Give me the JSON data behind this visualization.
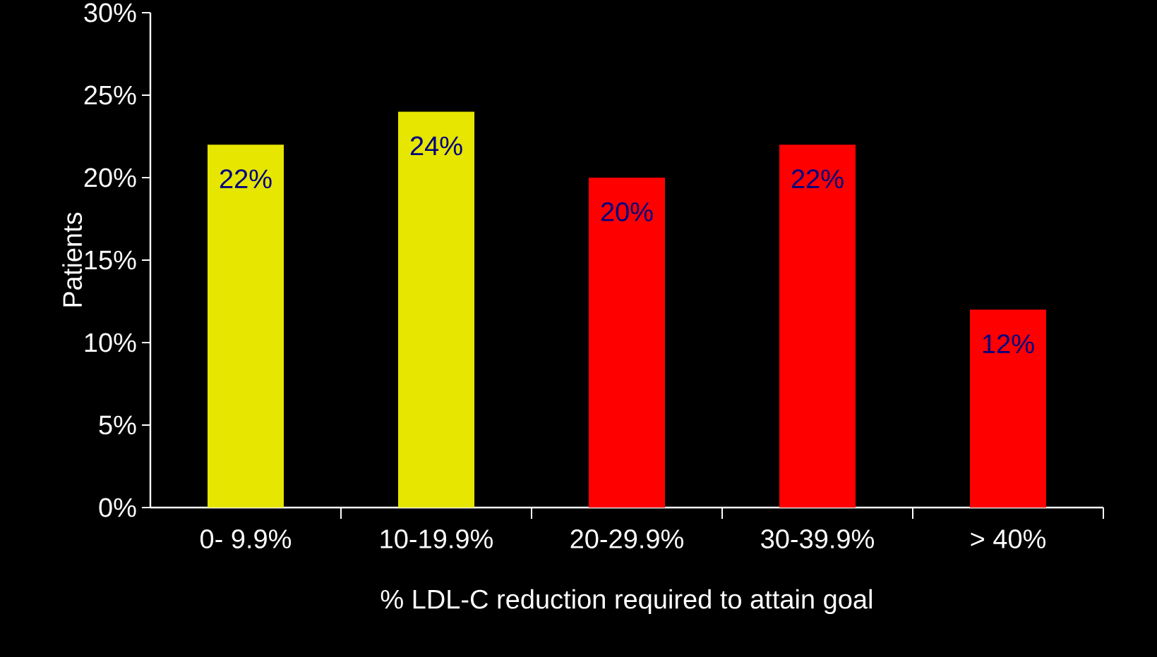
{
  "chart_data": {
    "type": "bar",
    "xlabel": "% LDL-C reduction required to attain goal",
    "ylabel": "Patients",
    "categories": [
      "0- 9.9%",
      "10-19.9%",
      "20-29.9%",
      "30-39.9%",
      "> 40%"
    ],
    "values": [
      22,
      24,
      20,
      22,
      12
    ],
    "colors": [
      "#e6e600",
      "#e6e600",
      "#ff0000",
      "#ff0000",
      "#ff0000"
    ],
    "value_labels": [
      "22%",
      "24%",
      "20%",
      "22%",
      "12%"
    ],
    "ylim": [
      0,
      30
    ],
    "yticks": [
      {
        "value": 0,
        "label": "0%"
      },
      {
        "value": 5,
        "label": "5%"
      },
      {
        "value": 10,
        "label": "10%"
      },
      {
        "value": 15,
        "label": "15%"
      },
      {
        "value": 20,
        "label": "20%"
      },
      {
        "value": 25,
        "label": "25%"
      },
      {
        "value": 30,
        "label": "30%"
      }
    ],
    "grid": false
  }
}
